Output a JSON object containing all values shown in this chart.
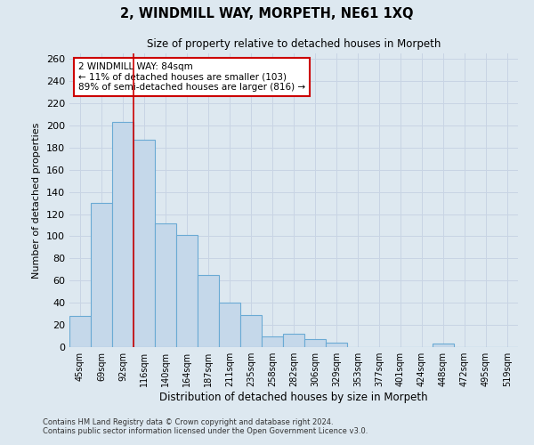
{
  "title": "2, WINDMILL WAY, MORPETH, NE61 1XQ",
  "subtitle": "Size of property relative to detached houses in Morpeth",
  "xlabel": "Distribution of detached houses by size in Morpeth",
  "ylabel": "Number of detached properties",
  "categories": [
    "45sqm",
    "69sqm",
    "92sqm",
    "116sqm",
    "140sqm",
    "164sqm",
    "187sqm",
    "211sqm",
    "235sqm",
    "258sqm",
    "282sqm",
    "306sqm",
    "329sqm",
    "353sqm",
    "377sqm",
    "401sqm",
    "424sqm",
    "448sqm",
    "472sqm",
    "495sqm",
    "519sqm"
  ],
  "bar_heights": [
    28,
    130,
    203,
    187,
    112,
    101,
    65,
    40,
    29,
    10,
    12,
    7,
    4,
    0,
    0,
    0,
    0,
    3,
    0,
    0,
    0
  ],
  "bar_color": "#c5d8ea",
  "bar_edge_color": "#6aaad4",
  "vline_index": 2,
  "vline_color": "#cc0000",
  "annotation_text": "2 WINDMILL WAY: 84sqm\n← 11% of detached houses are smaller (103)\n89% of semi-detached houses are larger (816) →",
  "annotation_box_color": "white",
  "annotation_box_edge": "#cc0000",
  "ylim": [
    0,
    265
  ],
  "yticks": [
    0,
    20,
    40,
    60,
    80,
    100,
    120,
    140,
    160,
    180,
    200,
    220,
    240,
    260
  ],
  "grid_color": "#c8d4e4",
  "bg_color": "#dde8f0",
  "plot_bg_color": "#dde8f0",
  "footer_line1": "Contains HM Land Registry data © Crown copyright and database right 2024.",
  "footer_line2": "Contains public sector information licensed under the Open Government Licence v3.0."
}
